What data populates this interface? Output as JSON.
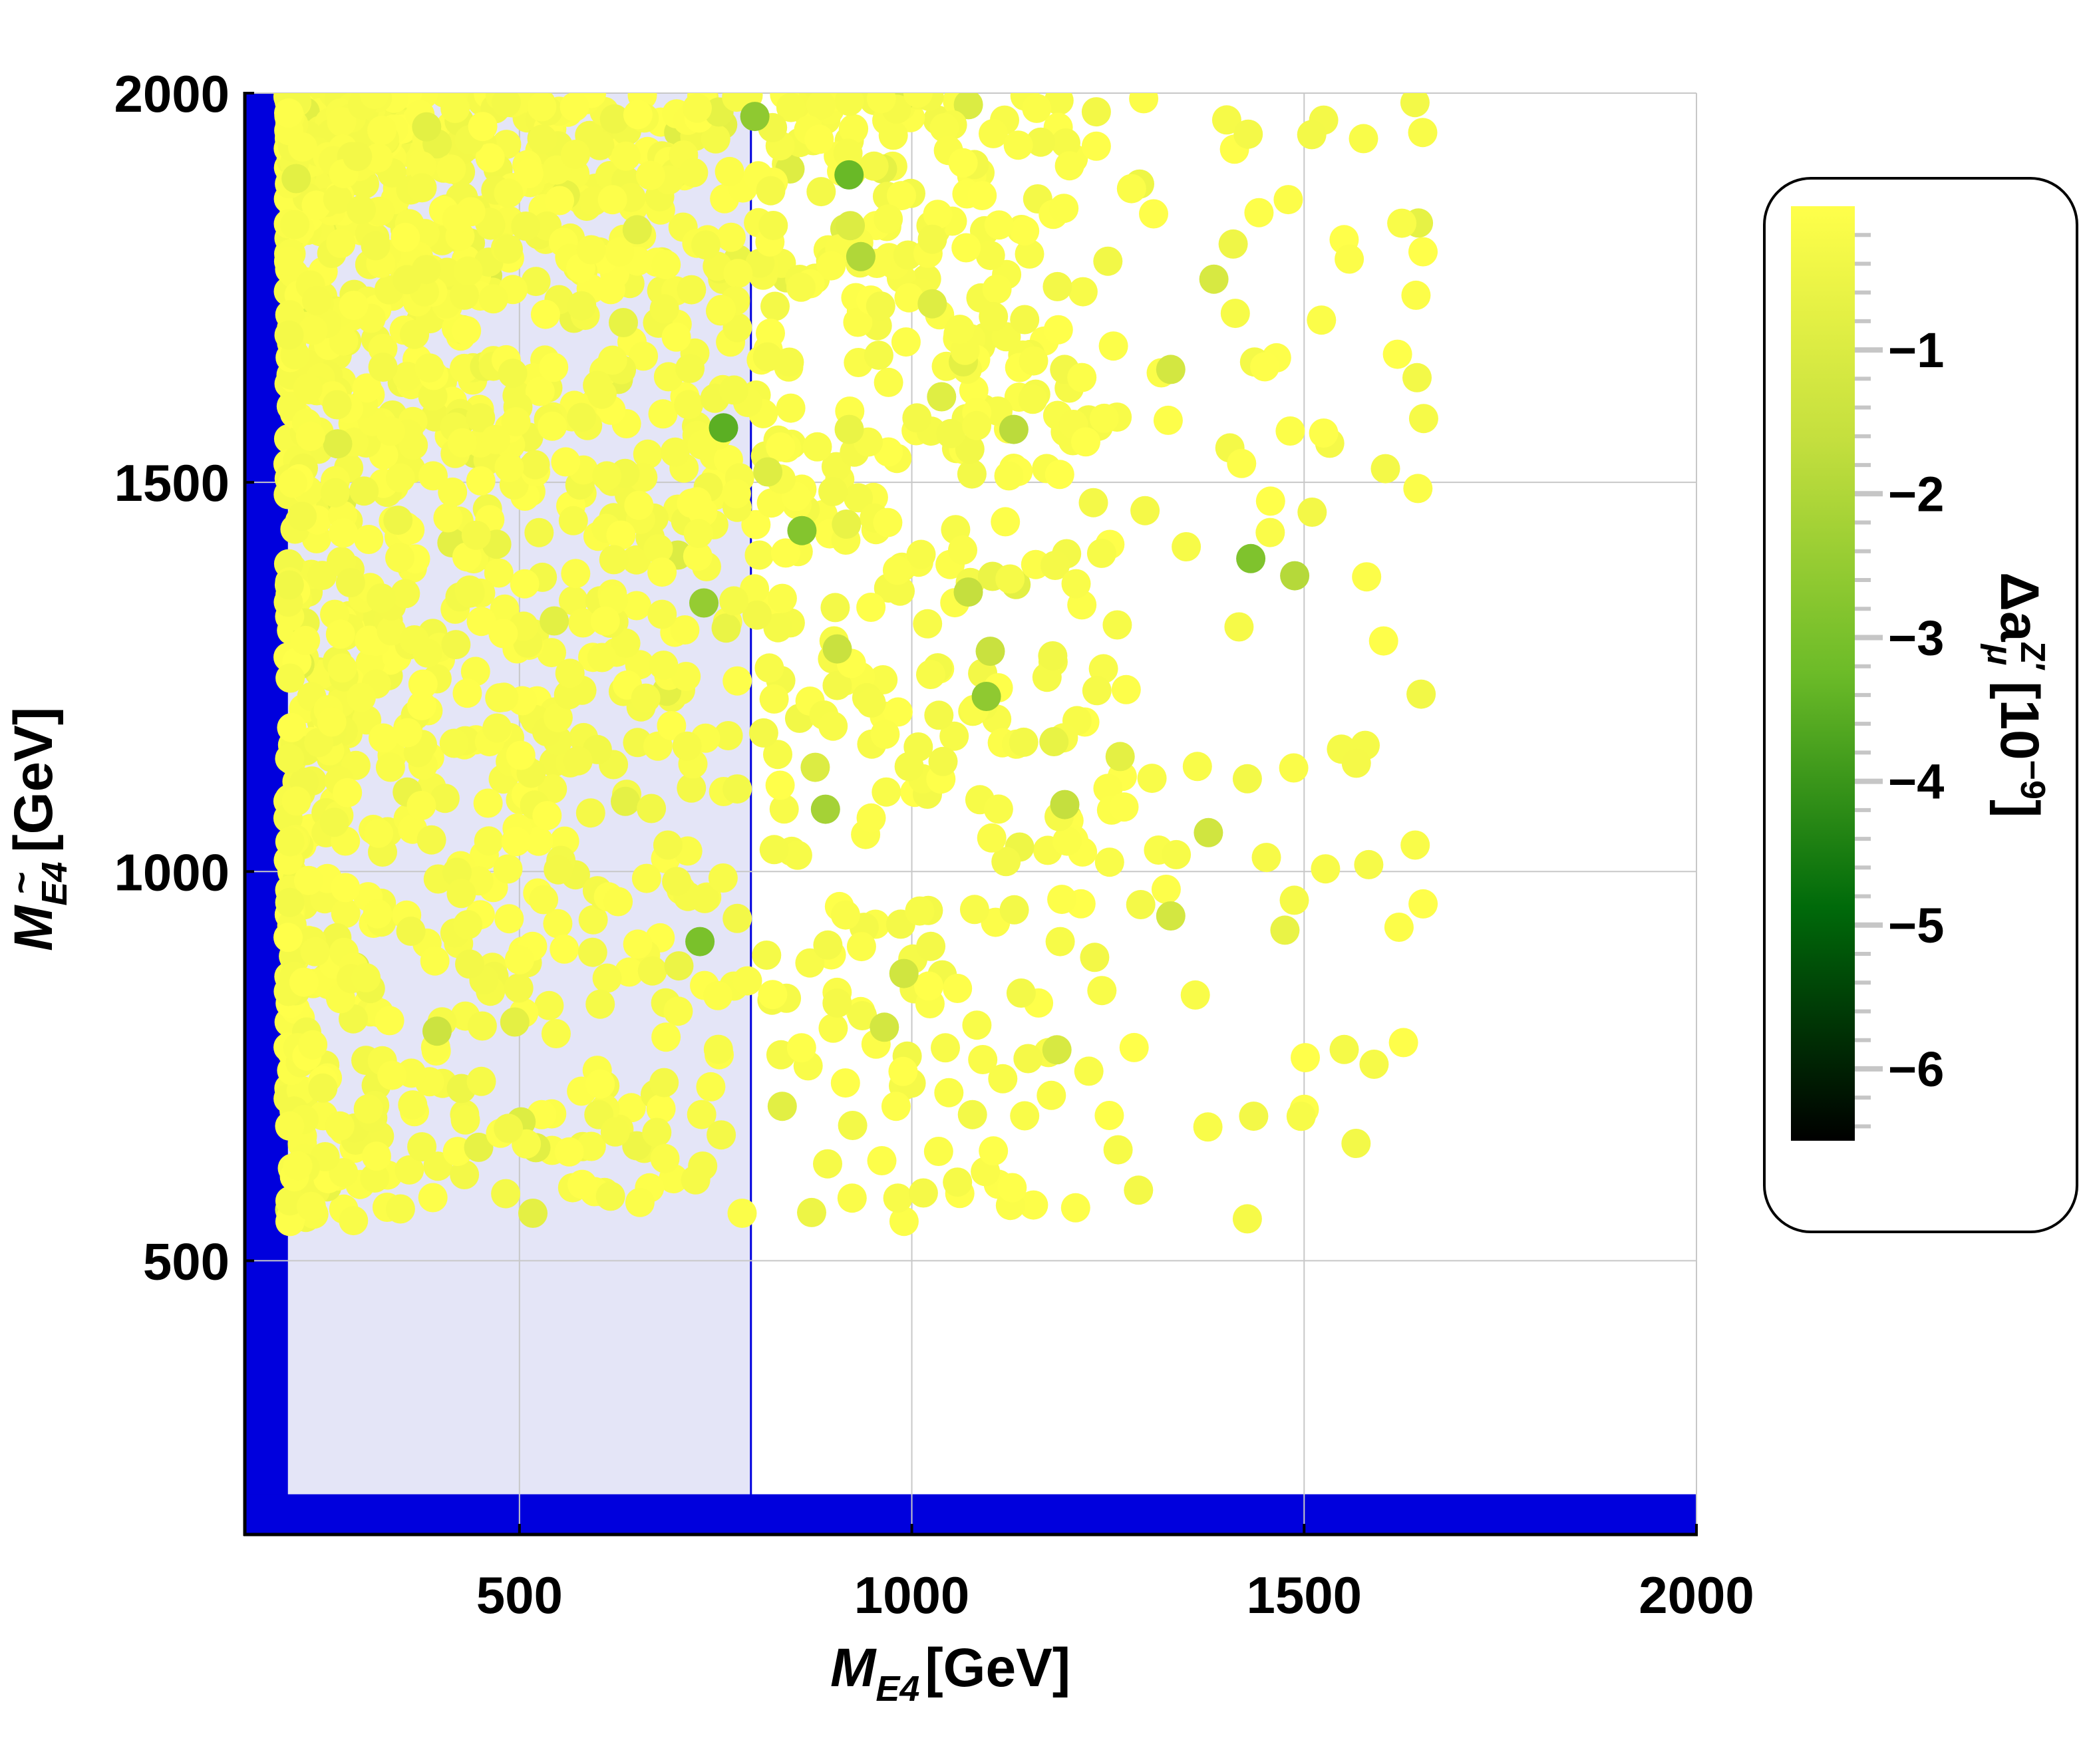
{
  "chart_data": {
    "type": "scatter",
    "x_axis": {
      "label_main": "M",
      "label_sub": "E4",
      "label_unit": "[GeV]",
      "range": [
        150,
        2000
      ],
      "ticks": [
        500,
        1000,
        1500,
        2000
      ],
      "tick_labels": [
        "500",
        "1000",
        "1500",
        "2000"
      ]
    },
    "y_axis": {
      "label_main": "M",
      "label_sub": "E4",
      "label_tilde": "~",
      "label_unit": "[GeV]",
      "range": [
        150,
        2000
      ],
      "ticks": [
        500,
        1000,
        1500,
        2000
      ],
      "tick_labels": [
        "500",
        "1000",
        "1500",
        "2000"
      ]
    },
    "grid": true,
    "regions": [
      {
        "name": "excluded-band-left",
        "x": [
          150,
          205
        ],
        "y": [
          150,
          2000
        ],
        "color": "#0000dd"
      },
      {
        "name": "excluded-band-bottom",
        "x": [
          150,
          2000
        ],
        "y": [
          150,
          200
        ],
        "color": "#0000dd"
      },
      {
        "name": "shaded-region",
        "x": [
          205,
          795
        ],
        "y": [
          200,
          2000
        ],
        "color": "#e4e5f7"
      }
    ],
    "boundary_line_x": 795,
    "colorbar": {
      "title": "Δa",
      "title_sup": "Z′",
      "title_sub": "μ",
      "title_unit": "[10",
      "title_unit_exp": "−9",
      "title_unit_close": "]",
      "range": [
        -6.5,
        0
      ],
      "ticks": [
        -1,
        -2,
        -3,
        -4,
        -5,
        -6
      ],
      "tick_labels": [
        "−1",
        "−2",
        "−3",
        "−4",
        "−5",
        "−6"
      ],
      "stops": [
        "#000000",
        "#006a0a",
        "#6cbb28",
        "#c4df3e",
        "#ffff4a"
      ],
      "position": "right"
    },
    "colors": {
      "point_default": "#ffff44",
      "axis": "#000000",
      "grid": "#c8c8c8",
      "band": "#0000dd",
      "shade": "#e4e5f7"
    },
    "sample": {
      "count": 1900,
      "x_range": [
        200,
        1700
      ],
      "y_range": [
        540,
        2000
      ],
      "seed": 7
    },
    "highlighted_points": [
      {
        "x": 1432,
        "y": 1402,
        "v": -2.9
      },
      {
        "x": 1488,
        "y": 1380,
        "v": -1.9
      },
      {
        "x": 1330,
        "y": 943,
        "v": -1.2
      },
      {
        "x": 1378,
        "y": 1050,
        "v": -1.3
      },
      {
        "x": 1185,
        "y": 771,
        "v": -1.1
      },
      {
        "x": 965,
        "y": 800,
        "v": -1.2
      },
      {
        "x": 860,
        "y": 1438,
        "v": -2.8
      },
      {
        "x": 735,
        "y": 1345,
        "v": -2.5
      },
      {
        "x": 730,
        "y": 910,
        "v": -3.0
      },
      {
        "x": 760,
        "y": 1570,
        "v": -3.5
      },
      {
        "x": 920,
        "y": 1895,
        "v": -3.3
      },
      {
        "x": 890,
        "y": 1080,
        "v": -2.2
      },
      {
        "x": 1095,
        "y": 1225,
        "v": -2.6
      },
      {
        "x": 1130,
        "y": 1568,
        "v": -1.8
      },
      {
        "x": 1072,
        "y": 1359,
        "v": -1.6
      },
      {
        "x": 1100,
        "y": 1283,
        "v": -1.5
      },
      {
        "x": 905,
        "y": 1286,
        "v": -1.5
      },
      {
        "x": 1195,
        "y": 1086,
        "v": -1.6
      },
      {
        "x": 990,
        "y": 869,
        "v": -1.3
      },
      {
        "x": 395,
        "y": 795,
        "v": -1.4
      },
      {
        "x": 800,
        "y": 1970,
        "v": -2.6
      },
      {
        "x": 1330,
        "y": 1645,
        "v": -1.2
      },
      {
        "x": 1385,
        "y": 1761,
        "v": -1.1
      },
      {
        "x": 935,
        "y": 1790,
        "v": -2.0
      }
    ]
  }
}
